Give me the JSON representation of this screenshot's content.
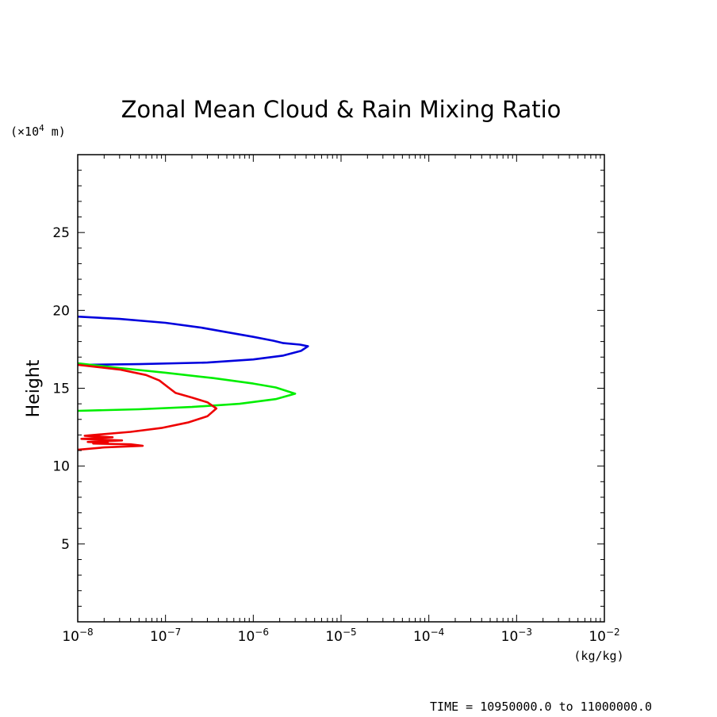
{
  "chart_data": {
    "type": "line",
    "title": "Zonal Mean Cloud & Rain Mixing Ratio",
    "ylabel": "Height",
    "yunit_prefix": "(×10",
    "yunit_exp": "4",
    "yunit_suffix": " m)",
    "xunit": "(kg/kg)",
    "xscale": "log",
    "xlim": [
      1e-08,
      0.01
    ],
    "ylim": [
      0,
      30
    ],
    "xticks": [
      {
        "value": 1e-08,
        "base": "10",
        "exp": "−8"
      },
      {
        "value": 1e-07,
        "base": "10",
        "exp": "−7"
      },
      {
        "value": 1e-06,
        "base": "10",
        "exp": "−6"
      },
      {
        "value": 1e-05,
        "base": "10",
        "exp": "−5"
      },
      {
        "value": 0.0001,
        "base": "10",
        "exp": "−4"
      },
      {
        "value": 0.001,
        "base": "10",
        "exp": "−3"
      },
      {
        "value": 0.01,
        "base": "10",
        "exp": "−2"
      }
    ],
    "yticks": [
      5,
      10,
      15,
      20,
      25
    ],
    "time_label": "TIME = 10950000.0 to 11000000.0",
    "series": [
      {
        "name": "blue",
        "color": "#0000dd",
        "points": [
          [
            1e-08,
            19.6
          ],
          [
            3e-08,
            19.45
          ],
          [
            1e-07,
            19.2
          ],
          [
            2.5e-07,
            18.9
          ],
          [
            5e-07,
            18.6
          ],
          [
            1e-06,
            18.3
          ],
          [
            1.7e-06,
            18.05
          ],
          [
            2.2e-06,
            17.9
          ],
          [
            3.4e-06,
            17.8
          ],
          [
            4.2e-06,
            17.7
          ],
          [
            3.5e-06,
            17.4
          ],
          [
            2.2e-06,
            17.1
          ],
          [
            1e-06,
            16.85
          ],
          [
            3e-07,
            16.65
          ],
          [
            5e-08,
            16.55
          ],
          [
            1e-08,
            16.5
          ]
        ]
      },
      {
        "name": "green",
        "color": "#00ee00",
        "points": [
          [
            1e-08,
            16.6
          ],
          [
            3e-08,
            16.3
          ],
          [
            1e-07,
            16.0
          ],
          [
            3.5e-07,
            15.65
          ],
          [
            1e-06,
            15.3
          ],
          [
            1.8e-06,
            15.05
          ],
          [
            3e-06,
            14.65
          ],
          [
            1.8e-06,
            14.3
          ],
          [
            7e-07,
            14.0
          ],
          [
            2e-07,
            13.8
          ],
          [
            5e-08,
            13.65
          ],
          [
            1e-08,
            13.55
          ]
        ]
      },
      {
        "name": "red",
        "color": "#ee0000",
        "points": [
          [
            1e-08,
            16.5
          ],
          [
            3e-08,
            16.2
          ],
          [
            6e-08,
            15.85
          ],
          [
            8.5e-08,
            15.5
          ],
          [
            1.05e-07,
            15.1
          ],
          [
            1.3e-07,
            14.7
          ],
          [
            2e-07,
            14.4
          ],
          [
            3e-07,
            14.1
          ],
          [
            3.8e-07,
            13.7
          ],
          [
            3e-07,
            13.2
          ],
          [
            1.8e-07,
            12.8
          ],
          [
            9e-08,
            12.45
          ],
          [
            4e-08,
            12.2
          ],
          [
            1.2e-08,
            11.95
          ],
          [
            2.5e-08,
            11.85
          ],
          [
            1.1e-08,
            11.75
          ],
          [
            3.2e-08,
            11.65
          ],
          [
            1.3e-08,
            11.55
          ],
          [
            2.2e-08,
            11.5
          ],
          [
            1.5e-08,
            11.45
          ],
          [
            4e-08,
            11.4
          ],
          [
            5.5e-08,
            11.3
          ],
          [
            2e-08,
            11.2
          ],
          [
            1e-08,
            11.05
          ]
        ]
      }
    ]
  }
}
